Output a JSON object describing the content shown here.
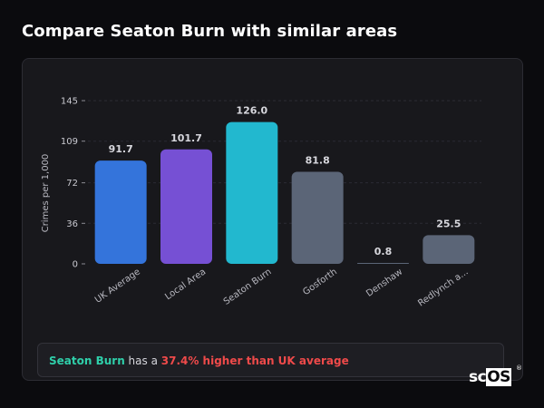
{
  "page": {
    "title": "Compare Seaton Burn with similar areas"
  },
  "summary": {
    "area": "Seaton Burn",
    "middle": " has a ",
    "comparison": "37.4% higher than UK average"
  },
  "logo": {
    "brand_prefix": "sc",
    "brand_box": "OS",
    "registered": "®"
  },
  "chart_data": {
    "type": "bar",
    "ylabel": "Crimes per 1,000",
    "ylim": [
      0,
      145
    ],
    "yticks": [
      0,
      36,
      72,
      109,
      145
    ],
    "grid": true,
    "legend": "none",
    "categories": [
      "UK Average",
      "Local Area",
      "Seaton Burn",
      "Gosforth",
      "Denshaw",
      "Redlynch a..."
    ],
    "values": [
      91.7,
      101.7,
      126.0,
      81.8,
      0.8,
      25.5
    ],
    "value_labels": [
      "91.7",
      "101.7",
      "126.0",
      "81.8",
      "0.8",
      "25.5"
    ],
    "colors": [
      "#3474db",
      "#7650d4",
      "#22b8cf",
      "#5b6577",
      "#5b6577",
      "#5b6577"
    ]
  }
}
